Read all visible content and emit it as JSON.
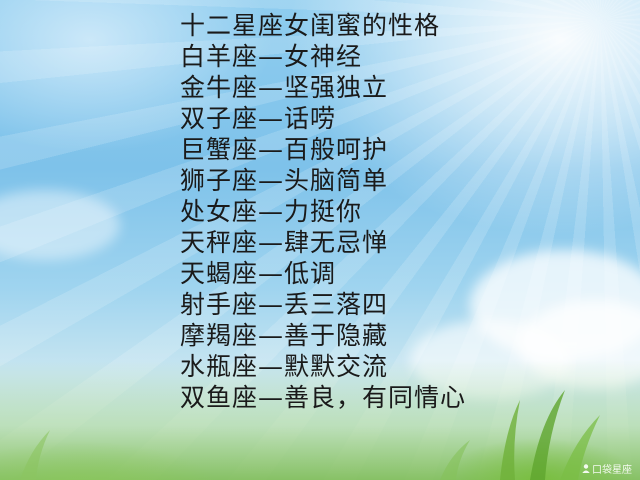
{
  "title": "十二星座女闺蜜的性格",
  "lines": [
    "白羊座—女神经",
    "金牛座—坚强独立",
    "双子座—话唠",
    "巨蟹座—百般呵护",
    "狮子座—头脑简单",
    "处女座—力挺你",
    "天秤座—肆无忌惮",
    "天蝎座—低调",
    "射手座—丢三落四",
    "摩羯座—善于隐藏",
    "水瓶座—默默交流",
    "双鱼座—善良，有同情心"
  ],
  "watermark": {
    "text": "口袋星座",
    "icon": "user-icon"
  },
  "colors": {
    "text": "#1a1a1a",
    "sky": "#7ec2ea",
    "grass": "#78b950"
  }
}
